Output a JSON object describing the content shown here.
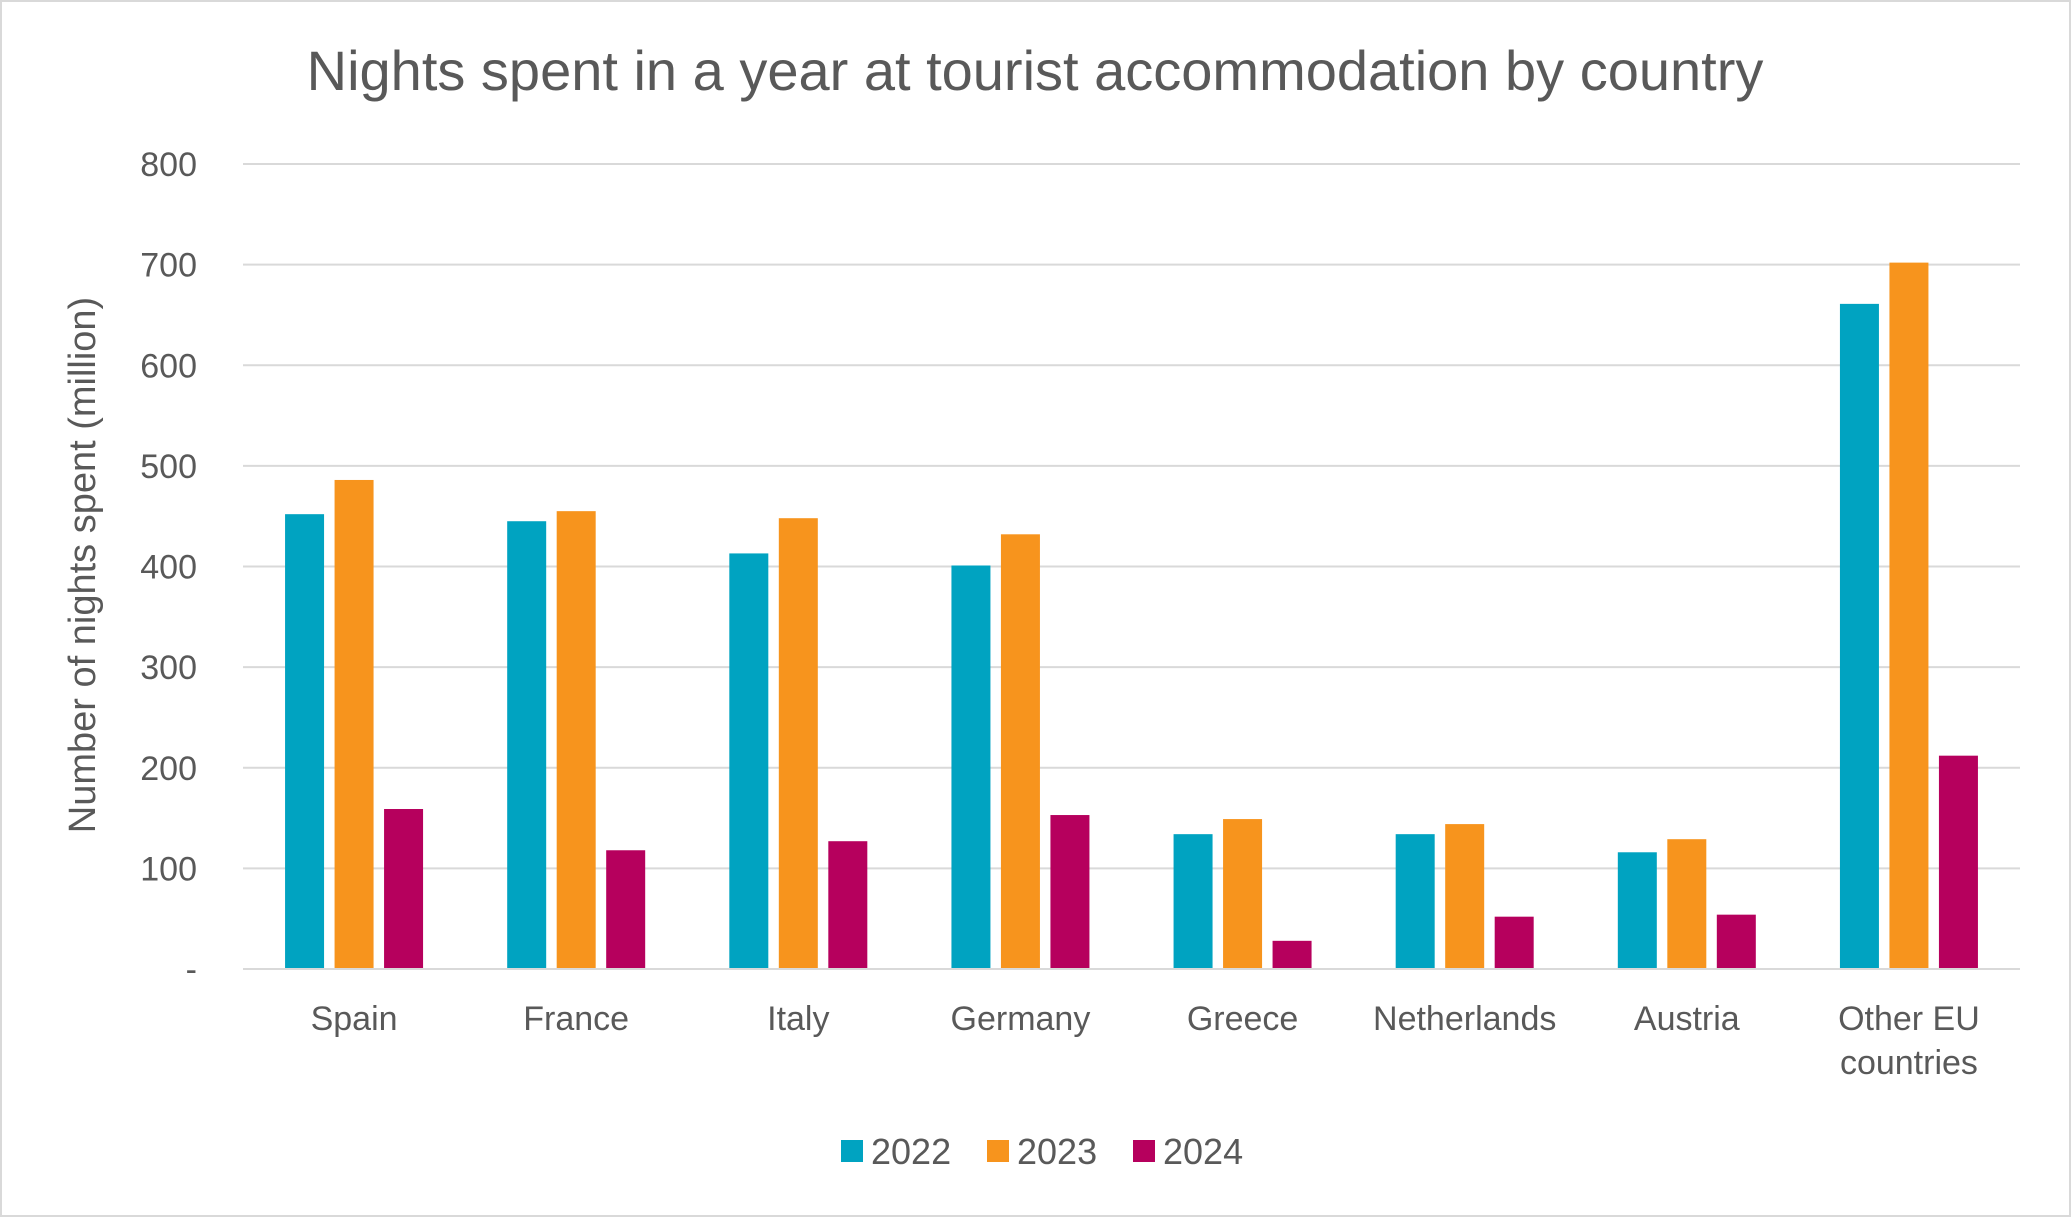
{
  "chart_data": {
    "type": "bar",
    "title": "Nights spent in a year at tourist accommodation by country",
    "xlabel": "",
    "ylabel": "Number of nights spent (million)",
    "ylim": [
      0,
      800
    ],
    "yticks": [
      {
        "value": 0,
        "label": "-"
      },
      {
        "value": 100,
        "label": "100"
      },
      {
        "value": 200,
        "label": "200"
      },
      {
        "value": 300,
        "label": "300"
      },
      {
        "value": 400,
        "label": "400"
      },
      {
        "value": 500,
        "label": "500"
      },
      {
        "value": 600,
        "label": "600"
      },
      {
        "value": 700,
        "label": "700"
      },
      {
        "value": 800,
        "label": "800"
      }
    ],
    "grid": true,
    "legend_position": "bottom",
    "categories": [
      [
        "Spain"
      ],
      [
        "France"
      ],
      [
        "Italy"
      ],
      [
        "Germany"
      ],
      [
        "Greece"
      ],
      [
        "Netherlands"
      ],
      [
        "Austria"
      ],
      [
        "Other EU",
        "countries"
      ]
    ],
    "series": [
      {
        "name": "2022",
        "color": "#00a3c1",
        "values": [
          452,
          445,
          413,
          401,
          134,
          134,
          116,
          661
        ]
      },
      {
        "name": "2023",
        "color": "#f7941d",
        "values": [
          486,
          455,
          448,
          432,
          149,
          144,
          129,
          702
        ]
      },
      {
        "name": "2024",
        "color": "#b6005d",
        "values": [
          159,
          118,
          127,
          153,
          28,
          52,
          54,
          212
        ]
      }
    ]
  }
}
